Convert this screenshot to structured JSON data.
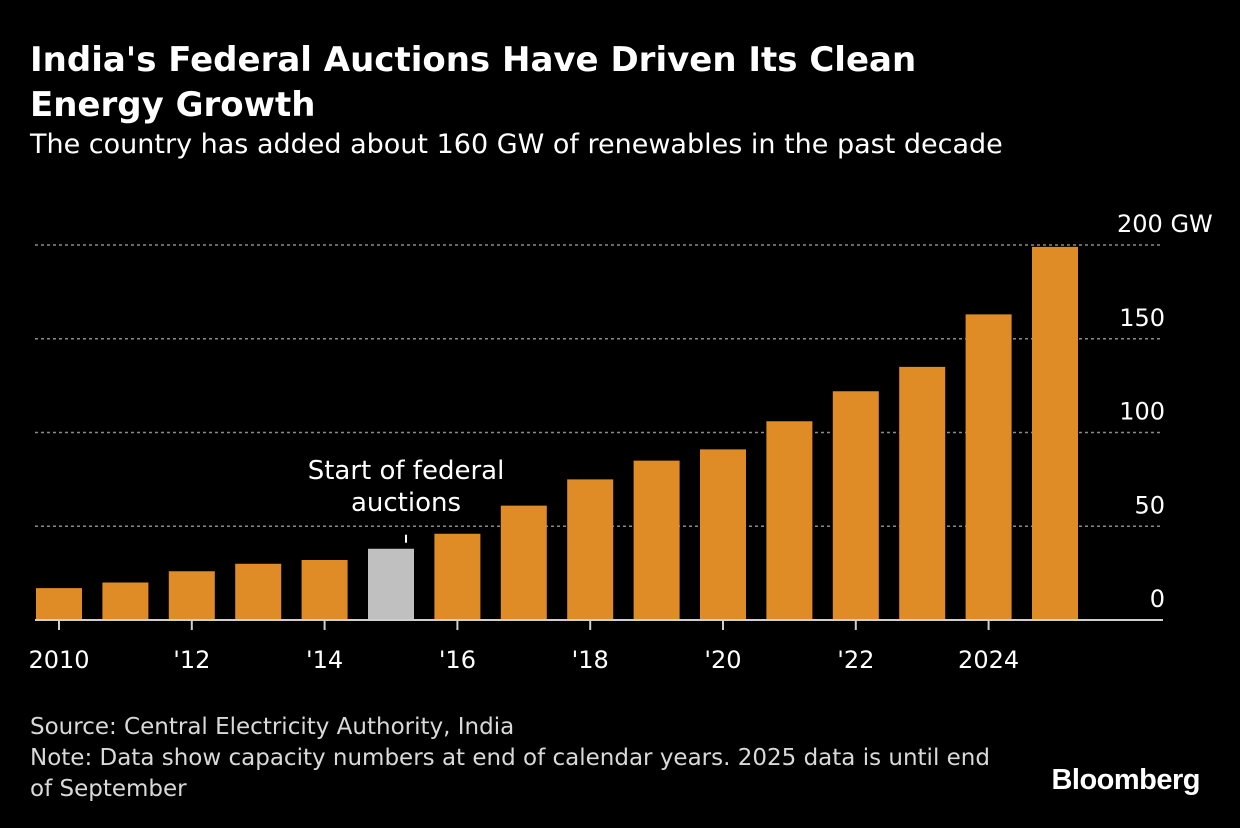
{
  "header": {
    "title": "India's Federal Auctions Have Driven Its Clean Energy Growth",
    "subtitle": "The country has added about 160 GW of renewables in the past decade"
  },
  "footer": {
    "source": "Source: Central Electricity Authority, India",
    "note": "Note: Data show capacity numbers at end of calendar years. 2025 data is until end of September",
    "brand": "Bloomberg"
  },
  "colors": {
    "bar": "#e08c26",
    "highlight_bar": "#c0c0c0",
    "background": "#000000"
  },
  "chart_data": {
    "type": "bar",
    "title": "India's Federal Auctions Have Driven Its Clean Energy Growth",
    "subtitle": "The country has added about 160 GW of renewables in the past decade",
    "x": [
      2010,
      2011,
      2012,
      2013,
      2014,
      2015,
      2016,
      2017,
      2018,
      2019,
      2020,
      2021,
      2022,
      2023,
      2024,
      2025
    ],
    "values": [
      17,
      20,
      26,
      30,
      32,
      38,
      46,
      61,
      75,
      85,
      91,
      106,
      122,
      135,
      163,
      199
    ],
    "highlight": 2015,
    "ylim": [
      0,
      200
    ],
    "yticks": [
      0,
      50,
      100,
      150,
      200
    ],
    "ytick_labels": [
      "0",
      "50",
      "100",
      "150",
      "200 GW"
    ],
    "xticks": [
      2010,
      2012,
      2014,
      2016,
      2018,
      2020,
      2022,
      2024
    ],
    "xtick_labels": [
      "2010",
      "'12",
      "'14",
      "'16",
      "'18",
      "'20",
      "'22",
      "2024"
    ],
    "annotation": {
      "x": 2015,
      "lines": [
        "Start of federal",
        "auctions"
      ]
    },
    "grid": true,
    "y_axis_side": "right"
  }
}
